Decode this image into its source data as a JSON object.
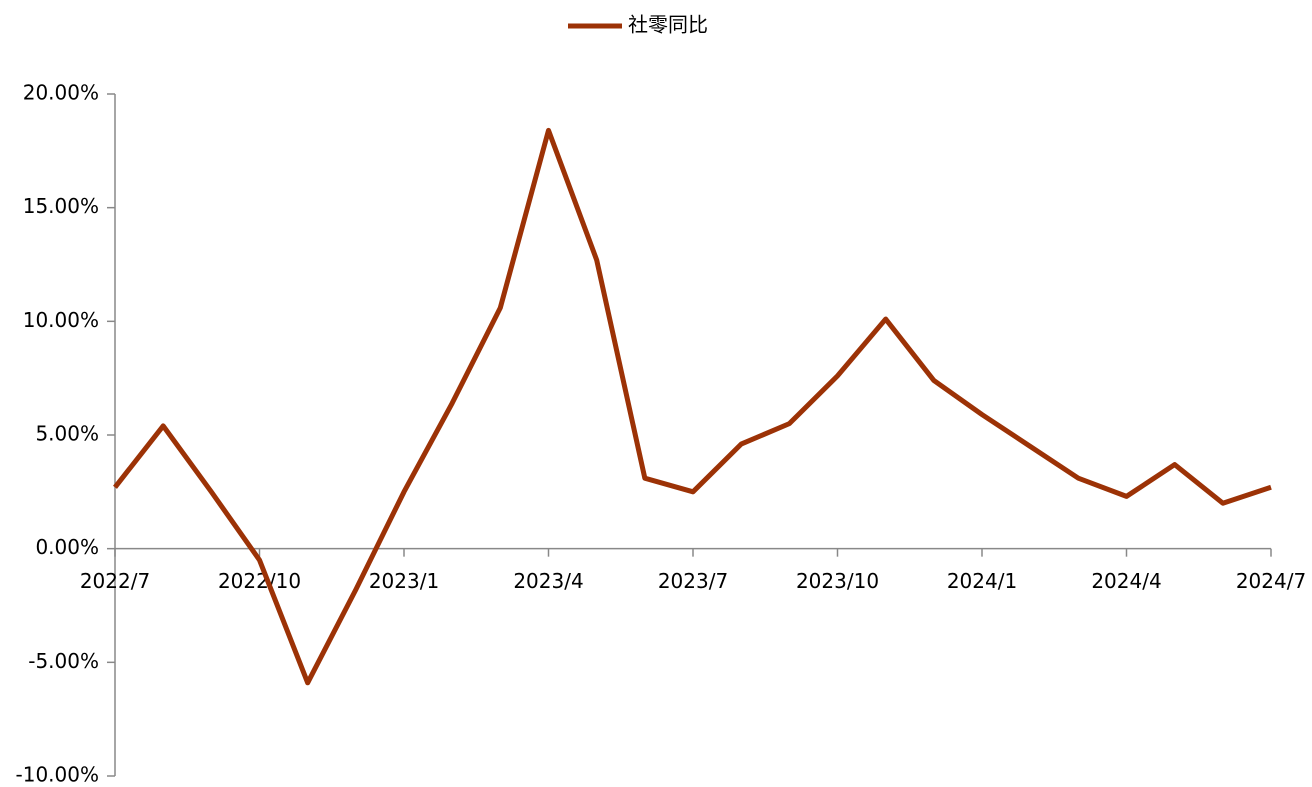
{
  "chart_data": {
    "type": "line",
    "categories": [
      "2022/7",
      null,
      null,
      "2022/10",
      null,
      null,
      "2023/1",
      null,
      null,
      "2023/4",
      null,
      null,
      "2023/7",
      null,
      null,
      "2023/10",
      null,
      null,
      "2024/1",
      null,
      null,
      "2024/4",
      null,
      null,
      "2024/7"
    ],
    "series": [
      {
        "name": "社零同比",
        "color": "#9c3206",
        "values": [
          2.7,
          5.4,
          2.5,
          -0.5,
          -5.9,
          -1.8,
          2.5,
          6.4,
          10.6,
          18.4,
          12.7,
          3.1,
          2.5,
          4.6,
          5.5,
          7.6,
          10.1,
          7.4,
          5.9,
          4.5,
          3.1,
          2.3,
          3.7,
          2.0,
          2.7
        ]
      }
    ],
    "ylim": [
      -10,
      20
    ],
    "yticks": [
      {
        "value": -10,
        "label": "-10.00%"
      },
      {
        "value": -5,
        "label": "-5.00%"
      },
      {
        "value": 0,
        "label": "0.00%"
      },
      {
        "value": 5,
        "label": "5.00%"
      },
      {
        "value": 10,
        "label": "10.00%"
      },
      {
        "value": 15,
        "label": "15.00%"
      },
      {
        "value": 20,
        "label": "20.00%"
      }
    ],
    "legend": "top"
  }
}
